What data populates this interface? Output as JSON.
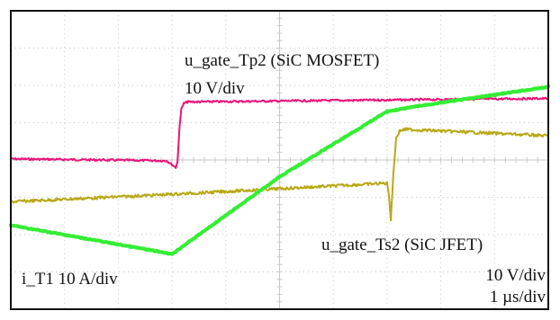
{
  "chart_data": {
    "type": "line",
    "x_unit_label": "1 µs/div",
    "grid": true,
    "divisions": {
      "x": 10,
      "y": 8
    },
    "x_range_div": [
      0,
      10
    ],
    "y_range_div": [
      -4,
      4
    ],
    "colors": {
      "gate_tp2": "#e8147a",
      "gate_ts2": "#b8a816",
      "current_t1": "#33ee33",
      "frame": "#111111",
      "grid": "#c8c8c8"
    },
    "annotations": {
      "tp2_name": "u_gate_Tp2 (SiC MOSFET)",
      "tp2_scale": "10 V/div",
      "ts2_name": "u_gate_Ts2 (SiC JFET)",
      "ts2_scale": "10 V/div",
      "time_scale": "1 µs/div",
      "it1": "i_T1  10 A/div"
    },
    "series": [
      {
        "key": "gate_tp2",
        "x": [
          0.0,
          2.9,
          3.07,
          3.1,
          3.14,
          3.17,
          3.22,
          3.3,
          3.5,
          10.0
        ],
        "y": [
          0.03,
          -0.02,
          -0.2,
          -0.05,
          0.9,
          1.35,
          1.52,
          1.56,
          1.56,
          1.65
        ]
      },
      {
        "key": "gate_ts2",
        "x": [
          0.0,
          3.0,
          7.0,
          7.03,
          7.07,
          7.12,
          7.17,
          7.24,
          7.35,
          10.0
        ],
        "y": [
          -1.12,
          -0.92,
          -0.62,
          -0.85,
          -1.6,
          -0.3,
          0.6,
          0.79,
          0.82,
          0.65
        ]
      },
      {
        "key": "current_t1",
        "x": [
          0.0,
          3.0,
          5.0,
          7.0,
          7.6,
          10.0
        ],
        "y": [
          -1.75,
          -2.52,
          -0.45,
          1.3,
          1.45,
          1.96
        ]
      }
    ]
  }
}
